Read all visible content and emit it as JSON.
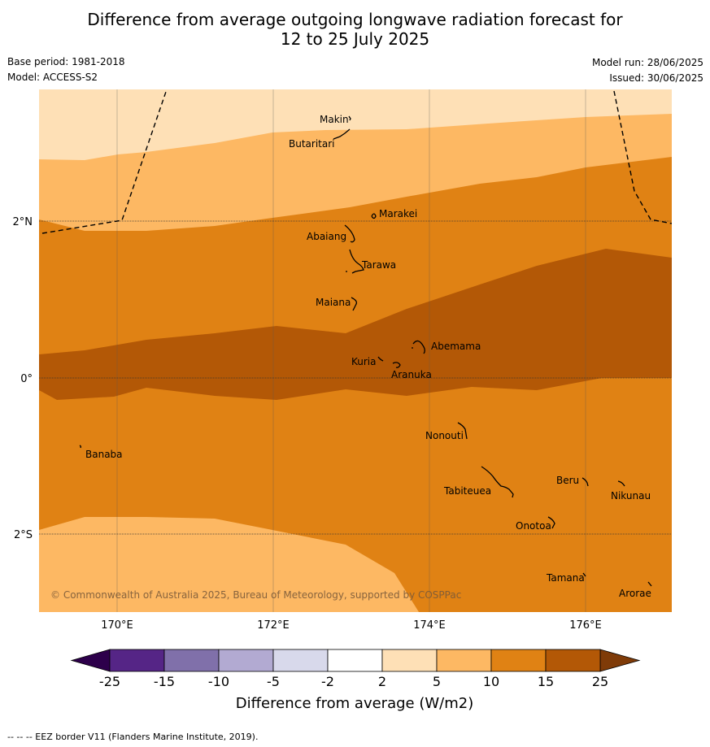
{
  "title_line1": "Difference from average outgoing longwave radiation forecast for",
  "title_line2": "12 to 25 July 2025",
  "base_period": "Base period: 1981-2018",
  "model": "Model: ACCESS-S2",
  "model_run": "Model run: 28/06/2025",
  "issued": "Issued: 30/06/2025",
  "copyright": "© Commonwealth of Australia 2025, Bureau of Meteorology, supported by COSPPac",
  "lat_labels": [
    "2°N",
    "0°",
    "2°S"
  ],
  "lon_labels": [
    "170°E",
    "172°E",
    "174°E",
    "176°E"
  ],
  "places": [
    {
      "name": "Makin"
    },
    {
      "name": "Butaritari"
    },
    {
      "name": "Marakei"
    },
    {
      "name": "Abaiang"
    },
    {
      "name": "Tarawa"
    },
    {
      "name": "Maiana"
    },
    {
      "name": "Abemama"
    },
    {
      "name": "Kuria"
    },
    {
      "name": "Aranuka"
    },
    {
      "name": "Nonouti"
    },
    {
      "name": "Banaba"
    },
    {
      "name": "Beru"
    },
    {
      "name": "Nikunau"
    },
    {
      "name": "Tabiteuea"
    },
    {
      "name": "Onotoa"
    },
    {
      "name": "Tamana"
    },
    {
      "name": "Arorae"
    }
  ],
  "colorbar": {
    "label": "Difference from average (W/m2)",
    "ticks": [
      "-25",
      "-15",
      "-10",
      "-5",
      "-2",
      "2",
      "5",
      "10",
      "15",
      "25"
    ],
    "colors": [
      "#552586",
      "#8070aa",
      "#b2aad2",
      "#d8d9eb",
      "#ffffff",
      "#fee0b6",
      "#fdb863",
      "#e08214",
      "#b35806"
    ],
    "under_color": "#2d004b",
    "over_color": "#7f3b08"
  },
  "legend_note": "--  --  -- EEZ border V11 (Flanders Marine Institute, 2019)."
}
